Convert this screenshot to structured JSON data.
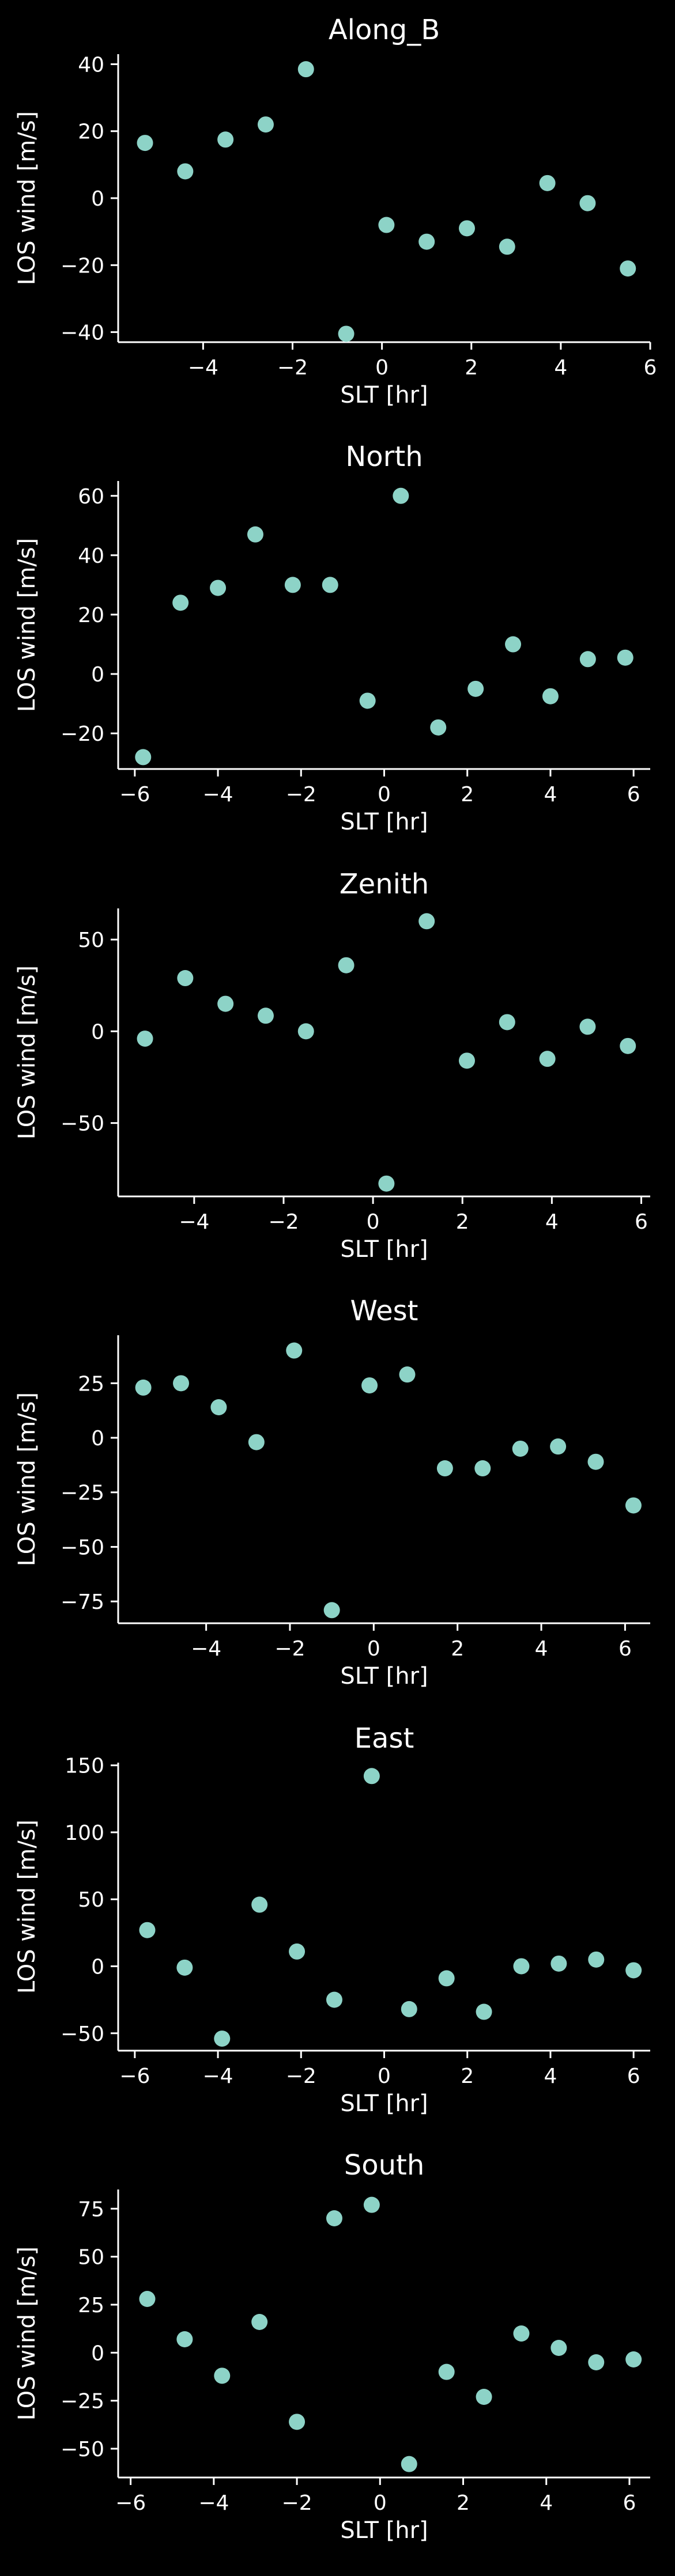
{
  "colors": {
    "background": "#000000",
    "foreground": "#ffffff",
    "marker": "#8dd3c7"
  },
  "chart_data": [
    {
      "type": "scatter",
      "title": "Along_B",
      "xlabel": "SLT [hr]",
      "ylabel": "LOS wind [m/s]",
      "xlim": [
        -5.9,
        6.0
      ],
      "ylim": [
        -43,
        43
      ],
      "xticks": [
        -4,
        -2,
        0,
        2,
        4,
        6
      ],
      "yticks": [
        -40,
        -20,
        0,
        20,
        40
      ],
      "x": [
        -5.3,
        -4.4,
        -3.5,
        -2.6,
        -1.7,
        -0.8,
        0.1,
        1.0,
        1.9,
        2.8,
        3.7,
        4.6,
        5.5
      ],
      "y": [
        16.5,
        8,
        17.5,
        22,
        38.5,
        -40.5,
        -8,
        -13,
        -9,
        -14.5,
        4.5,
        -1.5,
        -21
      ]
    },
    {
      "type": "scatter",
      "title": "North",
      "xlabel": "SLT [hr]",
      "ylabel": "LOS wind [m/s]",
      "xlim": [
        -6.4,
        6.4
      ],
      "ylim": [
        -32,
        65
      ],
      "xticks": [
        -6,
        -4,
        -2,
        0,
        2,
        4,
        6
      ],
      "yticks": [
        -20,
        0,
        20,
        40,
        60
      ],
      "x": [
        -5.8,
        -4.9,
        -4.0,
        -3.1,
        -2.2,
        -1.3,
        -0.4,
        0.4,
        1.3,
        2.2,
        3.1,
        4.0,
        4.9,
        5.8
      ],
      "y": [
        -28,
        24,
        29,
        47,
        30,
        30,
        -9,
        60,
        -18,
        -5,
        10,
        -7.5,
        5,
        5.5
      ]
    },
    {
      "type": "scatter",
      "title": "Zenith",
      "xlabel": "SLT [hr]",
      "ylabel": "LOS wind [m/s]",
      "xlim": [
        -5.7,
        6.2
      ],
      "ylim": [
        -90,
        67
      ],
      "xticks": [
        -4,
        -2,
        0,
        2,
        4,
        6
      ],
      "yticks": [
        -50,
        0,
        50
      ],
      "x": [
        -5.1,
        -4.2,
        -3.3,
        -2.4,
        -1.5,
        -0.6,
        0.3,
        1.2,
        2.1,
        3.0,
        3.9,
        4.8,
        5.7
      ],
      "y": [
        -4,
        29,
        15,
        8.5,
        0,
        36,
        -83,
        60,
        -16,
        5,
        -15,
        2.5,
        -8
      ]
    },
    {
      "type": "scatter",
      "title": "West",
      "xlabel": "SLT [hr]",
      "ylabel": "LOS wind [m/s]",
      "xlim": [
        -6.1,
        6.6
      ],
      "ylim": [
        -85,
        47
      ],
      "xticks": [
        -4,
        -2,
        0,
        2,
        4,
        6
      ],
      "yticks": [
        -75,
        -50,
        -25,
        0,
        25
      ],
      "x": [
        -5.5,
        -4.6,
        -3.7,
        -2.8,
        -1.9,
        -1.0,
        -0.1,
        0.8,
        1.7,
        2.6,
        3.5,
        4.4,
        5.3,
        6.2
      ],
      "y": [
        23,
        25,
        14,
        -2,
        40,
        -79,
        24,
        29,
        -14,
        -14,
        -5,
        -4,
        -11,
        -31
      ]
    },
    {
      "type": "scatter",
      "title": "East",
      "xlabel": "SLT [hr]",
      "ylabel": "LOS wind [m/s]",
      "xlim": [
        -6.4,
        6.4
      ],
      "ylim": [
        -63,
        152
      ],
      "xticks": [
        -6,
        -4,
        -2,
        0,
        2,
        4,
        6
      ],
      "yticks": [
        -50,
        0,
        50,
        100,
        150
      ],
      "x": [
        -5.7,
        -4.8,
        -3.9,
        -3.0,
        -2.1,
        -1.2,
        -0.3,
        0.6,
        1.5,
        2.4,
        3.3,
        4.2,
        5.1,
        6.0
      ],
      "y": [
        27,
        -1,
        -54,
        46,
        11,
        -25,
        142,
        -32,
        -9,
        -34,
        0,
        2,
        5,
        -3
      ]
    },
    {
      "type": "scatter",
      "title": "South",
      "xlabel": "SLT [hr]",
      "ylabel": "LOS wind [m/s]",
      "xlim": [
        -6.3,
        6.5
      ],
      "ylim": [
        -65,
        85
      ],
      "xticks": [
        -6,
        -4,
        -2,
        0,
        2,
        4,
        6
      ],
      "yticks": [
        -50,
        -25,
        0,
        25,
        50,
        75
      ],
      "x": [
        -5.6,
        -4.7,
        -3.8,
        -2.9,
        -2.0,
        -1.1,
        -0.2,
        0.7,
        1.6,
        2.5,
        3.4,
        4.3,
        5.2,
        6.1
      ],
      "y": [
        28,
        7,
        -12,
        16,
        -36,
        70,
        77,
        -58,
        -10,
        -23,
        10,
        2.5,
        -5,
        -3.5
      ]
    }
  ]
}
